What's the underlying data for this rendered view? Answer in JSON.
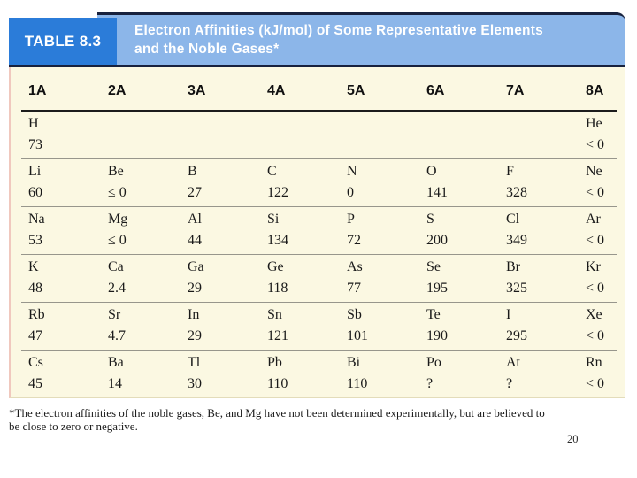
{
  "header": {
    "label": "TABLE 8.3",
    "title_line1": "Electron Affinities (kJ/mol) of Some Representative Elements",
    "title_line2": "and the Noble Gases*"
  },
  "table": {
    "columns": [
      "1A",
      "2A",
      "3A",
      "4A",
      "5A",
      "6A",
      "7A",
      "8A"
    ],
    "rows": [
      [
        {
          "symbol": "H",
          "value": "73"
        },
        null,
        null,
        null,
        null,
        null,
        null,
        {
          "symbol": "He",
          "value": "< 0"
        }
      ],
      [
        {
          "symbol": "Li",
          "value": "60"
        },
        {
          "symbol": "Be",
          "value": "≤ 0"
        },
        {
          "symbol": "B",
          "value": "27"
        },
        {
          "symbol": "C",
          "value": "122"
        },
        {
          "symbol": "N",
          "value": "0"
        },
        {
          "symbol": "O",
          "value": "141"
        },
        {
          "symbol": "F",
          "value": "328"
        },
        {
          "symbol": "Ne",
          "value": "< 0"
        }
      ],
      [
        {
          "symbol": "Na",
          "value": "53"
        },
        {
          "symbol": "Mg",
          "value": "≤ 0"
        },
        {
          "symbol": "Al",
          "value": "44"
        },
        {
          "symbol": "Si",
          "value": "134"
        },
        {
          "symbol": "P",
          "value": "72"
        },
        {
          "symbol": "S",
          "value": "200"
        },
        {
          "symbol": "Cl",
          "value": "349"
        },
        {
          "symbol": "Ar",
          "value": "< 0"
        }
      ],
      [
        {
          "symbol": "K",
          "value": "48"
        },
        {
          "symbol": "Ca",
          "value": "2.4"
        },
        {
          "symbol": "Ga",
          "value": "29"
        },
        {
          "symbol": "Ge",
          "value": "118"
        },
        {
          "symbol": "As",
          "value": "77"
        },
        {
          "symbol": "Se",
          "value": "195"
        },
        {
          "symbol": "Br",
          "value": "325"
        },
        {
          "symbol": "Kr",
          "value": "< 0"
        }
      ],
      [
        {
          "symbol": "Rb",
          "value": "47"
        },
        {
          "symbol": "Sr",
          "value": "4.7"
        },
        {
          "symbol": "In",
          "value": "29"
        },
        {
          "symbol": "Sn",
          "value": "121"
        },
        {
          "symbol": "Sb",
          "value": "101"
        },
        {
          "symbol": "Te",
          "value": "190"
        },
        {
          "symbol": "I",
          "value": "295"
        },
        {
          "symbol": "Xe",
          "value": "< 0"
        }
      ],
      [
        {
          "symbol": "Cs",
          "value": "45"
        },
        {
          "symbol": "Ba",
          "value": "14"
        },
        {
          "symbol": "Tl",
          "value": "30"
        },
        {
          "symbol": "Pb",
          "value": "110"
        },
        {
          "symbol": "Bi",
          "value": "110"
        },
        {
          "symbol": "Po",
          "value": "?"
        },
        {
          "symbol": "At",
          "value": "?"
        },
        {
          "symbol": "Rn",
          "value": "< 0"
        }
      ]
    ]
  },
  "footnote": {
    "line1": "*The electron affinities of the noble gases, Be, and Mg have not been determined experimentally, but are believed to",
    "line2": "be close to zero or negative."
  },
  "page_number": "20",
  "colors": {
    "navy": "#18223E",
    "label-blue": "#2B7CD9",
    "title-blue": "#8CB6E9",
    "cream": "#FBF8E2"
  }
}
